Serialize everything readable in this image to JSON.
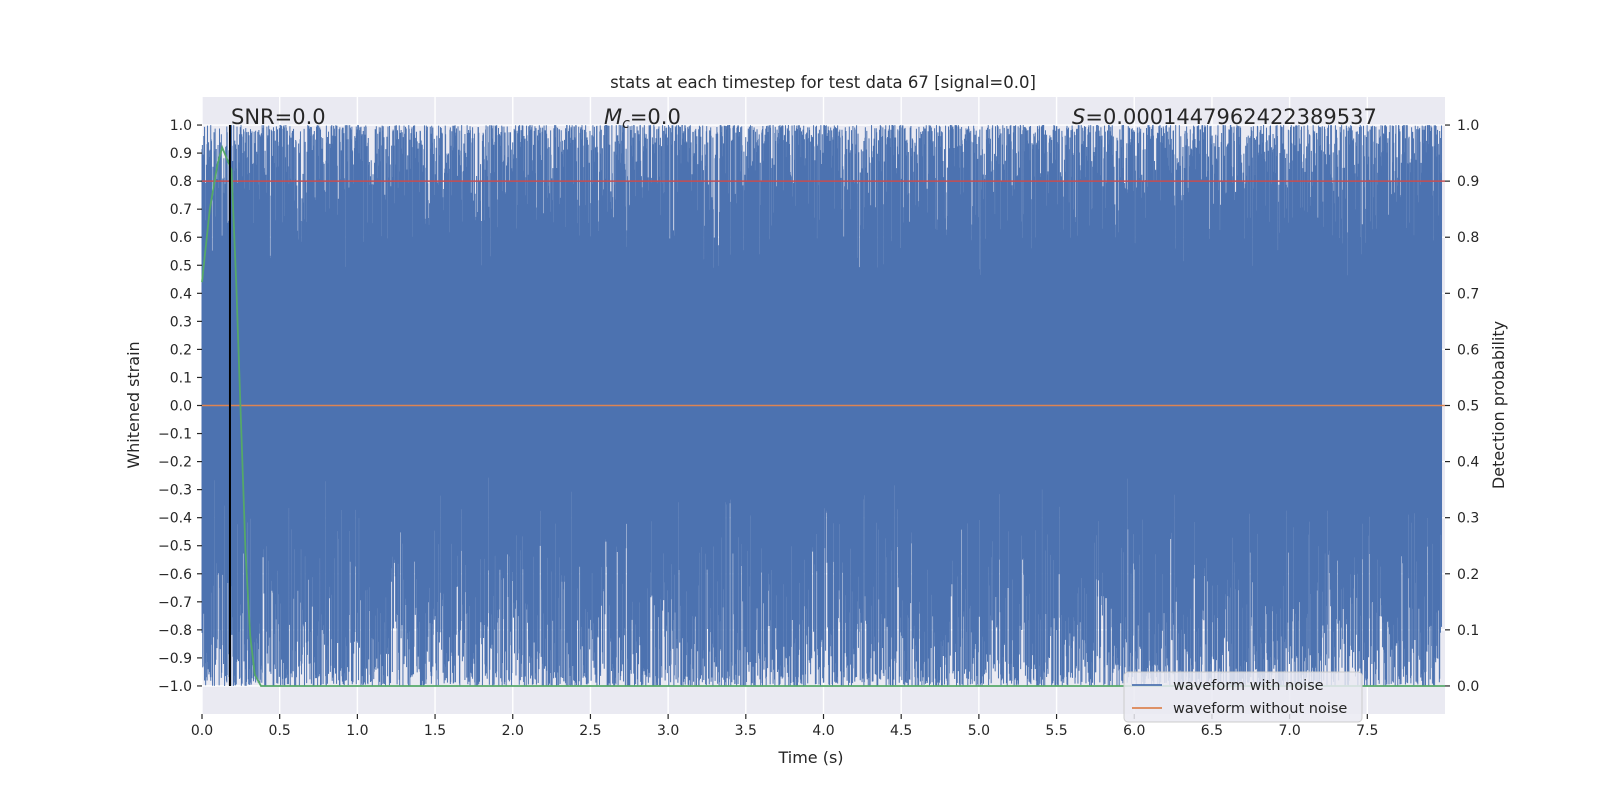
{
  "chart_data": {
    "type": "line",
    "title": "stats at each timestep for test data 67 [signal=0.0]",
    "xlabel": "Time (s)",
    "ylabel_left": "Whitened strain",
    "ylabel_right": "Detection probability",
    "xlim": [
      0.0,
      8.0
    ],
    "ylim_left": [
      -1.1,
      1.1
    ],
    "ylim_right": [
      -0.05,
      1.05
    ],
    "x_ticks": [
      "0.0",
      "0.5",
      "1.0",
      "1.5",
      "2.0",
      "2.5",
      "3.0",
      "3.5",
      "4.0",
      "4.5",
      "5.0",
      "5.5",
      "6.0",
      "6.5",
      "7.0",
      "7.5"
    ],
    "y_left_ticks": [
      "1.0",
      "0.9",
      "0.8",
      "0.7",
      "0.6",
      "0.5",
      "0.4",
      "0.3",
      "0.2",
      "0.1",
      "0.0",
      "−0.1",
      "−0.2",
      "−0.3",
      "−0.4",
      "−0.5",
      "−0.6",
      "−0.7",
      "−0.8",
      "−0.9",
      "−1.0"
    ],
    "y_right_ticks": [
      "1.0",
      "0.9",
      "0.8",
      "0.7",
      "0.6",
      "0.5",
      "0.4",
      "0.3",
      "0.2",
      "0.1",
      "0.0"
    ],
    "grid": true,
    "annotations": {
      "snr": "SNR=0.0",
      "mc_symbol": "M",
      "mc_sub": "c",
      "mc_value": "=0.0",
      "s_symbol": "S",
      "s_value": "=0.0001447962422389537"
    },
    "vline_x": 0.18,
    "threshold_right": 0.9,
    "series": [
      {
        "name": "waveform with noise",
        "color": "#4c72b0",
        "description": "dense whitened noise spanning approximately -1.0 to 1.0 over 0-8 s",
        "range": [
          -1.0,
          1.0
        ]
      },
      {
        "name": "waveform without noise",
        "color": "#dd8452",
        "x": [
          0.0,
          8.0
        ],
        "y": [
          0.0,
          0.0
        ]
      },
      {
        "name": "detection probability",
        "color": "#55a868",
        "axis": "right",
        "x": [
          0.0,
          0.05,
          0.1,
          0.13,
          0.16,
          0.19,
          0.22,
          0.25,
          0.28,
          0.31,
          0.34,
          0.38,
          0.45,
          1.0,
          2.0,
          3.0,
          4.0,
          5.0,
          6.0,
          7.0,
          8.0
        ],
        "y": [
          0.72,
          0.85,
          0.93,
          0.96,
          0.94,
          0.92,
          0.72,
          0.48,
          0.24,
          0.09,
          0.02,
          0.0,
          0.0,
          0.0,
          0.0,
          0.0,
          0.0,
          0.0,
          0.0,
          0.0,
          0.0
        ]
      }
    ],
    "threshold_color": "#c44e52",
    "vline_color": "#000000",
    "legend": {
      "placement": "bottom-right",
      "entries": [
        "waveform with noise",
        "waveform without noise"
      ]
    }
  }
}
